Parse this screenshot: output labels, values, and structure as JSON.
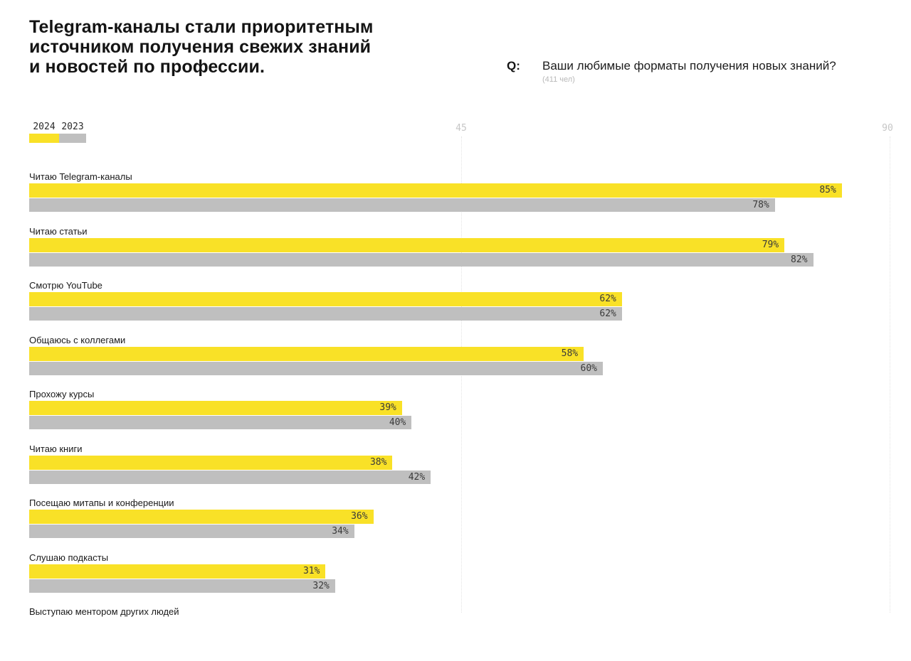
{
  "header": {
    "title_lines": [
      "Telegram-каналы стали приоритетным",
      "источником получения свежих знаний",
      "и новостей по профессии."
    ]
  },
  "question": {
    "prefix": "Q:",
    "text": "Ваши любимые форматы получения новых знаний?",
    "sample": "(411 чел)"
  },
  "legend": {
    "items": [
      {
        "label": "2024",
        "color": "#F9E127"
      },
      {
        "label": "2023",
        "color": "#BFBFBF"
      }
    ]
  },
  "chart_data": {
    "type": "bar",
    "orientation": "horizontal",
    "title": "Telegram-каналы стали приоритетным источником получения свежих знаний и новостей по профессии.",
    "question": "Ваши любимые форматы получения новых знаний? (411 чел)",
    "categories": [
      "Читаю Telegram-каналы",
      "Читаю статьи",
      "Смотрю YouTube",
      "Общаюсь с коллегами",
      "Прохожу курсы",
      "Читаю книги",
      "Посещаю митапы и конференции",
      "Слушаю подкасты",
      "Выступаю ментором других людей"
    ],
    "series": [
      {
        "name": "2024",
        "color": "#F9E127",
        "values": [
          85,
          79,
          62,
          58,
          39,
          38,
          36,
          31,
          null
        ]
      },
      {
        "name": "2023",
        "color": "#BFBFBF",
        "values": [
          78,
          82,
          62,
          60,
          40,
          42,
          34,
          32,
          null
        ]
      }
    ],
    "value_suffix": "%",
    "xlim": [
      0,
      90
    ],
    "ticks": [
      45,
      90
    ],
    "grid": "dotted-vertical",
    "legend_position": "top-left"
  }
}
